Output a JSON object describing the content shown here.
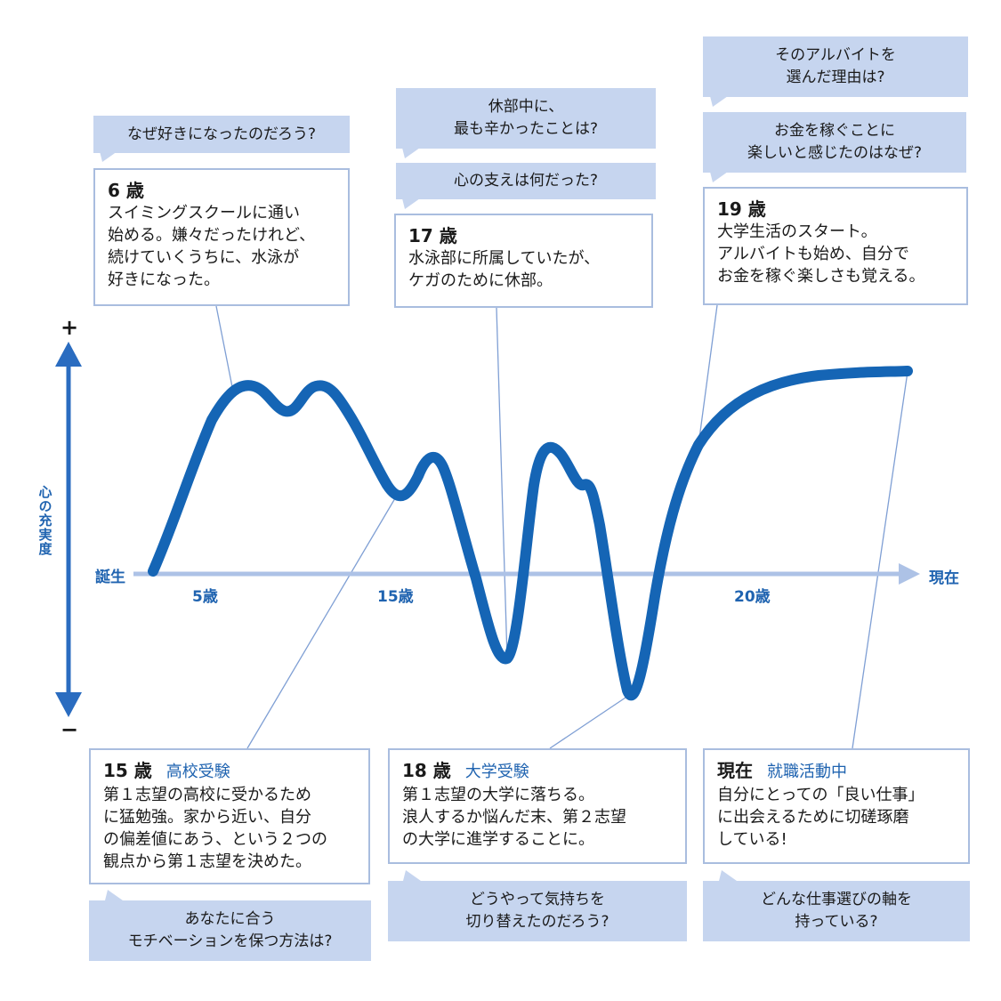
{
  "colors": {
    "curve": "#1565b5",
    "axis": "#adc2e6",
    "box_border": "#a9bddf",
    "question_bg": "#c6d5ef",
    "accent_text": "#1f63b0"
  },
  "axis": {
    "x_start": "誕生",
    "x_end": "現在",
    "y_label": "心の充実度",
    "plus": "+",
    "minus": "−",
    "ticks": [
      {
        "label": "5歳"
      },
      {
        "label": "15歳"
      },
      {
        "label": "20歳"
      }
    ]
  },
  "events": {
    "age6": {
      "age": "6 歳",
      "text": "スイミングスクールに通い\n始める。嫌々だったけれど、\n続けていくうちに、水泳が\n好きになった。",
      "question": "なぜ好きになったのだろう?"
    },
    "age17": {
      "age": "17 歳",
      "text": "水泳部に所属していたが、\nケガのために休部。",
      "question1": "休部中に、\n最も辛かったことは?",
      "question2": "心の支えは何だった?"
    },
    "age19": {
      "age": "19 歳",
      "text": "大学生活のスタート。\nアルバイトも始め、自分で\nお金を稼ぐ楽しさも覚える。",
      "question1": "そのアルバイトを\n選んだ理由は?",
      "question2": "お金を稼ぐことに\n楽しいと感じたのはなぜ?"
    },
    "age15": {
      "age": "15 歳",
      "tag": "高校受験",
      "text": "第１志望の高校に受かるため\nに猛勉強。家から近い、自分\nの偏差値にあう、という２つの\n観点から第１志望を決めた。",
      "question": "あなたに合う\nモチベーションを保つ方法は?"
    },
    "age18": {
      "age": "18 歳",
      "tag": "大学受験",
      "text": "第１志望の大学に落ちる。\n浪人するか悩んだ末、第２志望\nの大学に進学することに。",
      "question": "どうやって気持ちを\n切り替えたのだろう?"
    },
    "now": {
      "age": "現在",
      "tag": "就職活動中",
      "text": "自分にとっての「良い仕事」\nに出会えるために切磋琢磨\nしている!",
      "question": "どんな仕事選びの軸を\n持っている?"
    }
  }
}
